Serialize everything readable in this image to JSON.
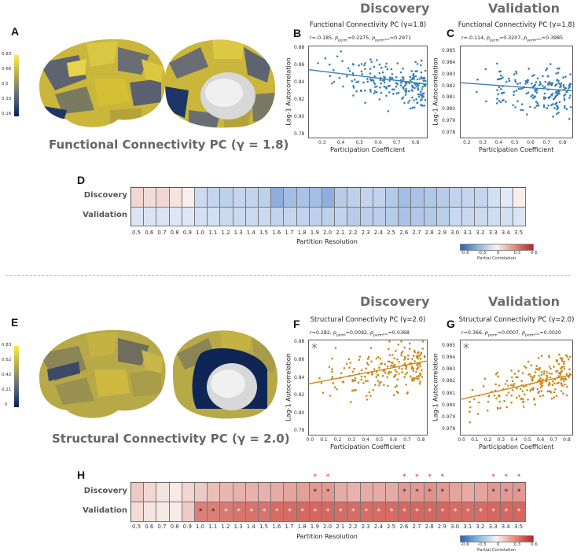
{
  "header": {
    "discovery": "Discovery",
    "validation": "Validation",
    "discovery2": "Discovery",
    "validation2": "Validation"
  },
  "panels": {
    "A": "A",
    "B": "B",
    "C": "C",
    "D": "D",
    "E": "E",
    "F": "F",
    "G": "G",
    "H": "H"
  },
  "brain": {
    "functional_caption": "Functional Connectivity PC (γ = 1.8)",
    "structural_caption": "Structural Connectivity PC (γ = 2.0)",
    "functional_cbar_ticks": [
      "0.83",
      "0.66",
      "0.5",
      "0.33",
      "0.16"
    ],
    "structural_cbar_ticks": [
      "0.83",
      "0.62",
      "0.42",
      "0.21",
      "0"
    ]
  },
  "chart_data": [
    {
      "type": "scatter",
      "panel": "B",
      "title": "Functional Connectivity PC (γ=1.8)",
      "stats": "r=-0.185, p_perm=0.2275, p_perm*** =0.2971",
      "stat_r": "r=-0.185, ",
      "stat_p1": "p",
      "stat_p1sub": "perm",
      "stat_p1val": "=0.2275, ",
      "stat_p2": "p",
      "stat_p2sub": "perm***",
      "stat_p2val": "=0.2971",
      "xlabel": "Participation Coefficient",
      "ylabel": "Lag-1 Autocorrelation",
      "xlim": [
        0.22,
        0.86
      ],
      "ylim": [
        0.775,
        0.883
      ],
      "xticks": [
        "0.3",
        "0.4",
        "0.5",
        "0.6",
        "0.7",
        "0.8"
      ],
      "yticks": [
        "0.88",
        "0.86",
        "0.84",
        "0.82",
        "0.80",
        "0.78"
      ],
      "fit": {
        "x0": 0.22,
        "y0": 0.855,
        "x1": 0.86,
        "y1": 0.838
      },
      "color": "#3a7fb4",
      "seed": 11,
      "slope": -0.03,
      "intercept": 0.861,
      "noise": 0.016,
      "significant": false
    },
    {
      "type": "scatter",
      "panel": "C",
      "title": "Functional Connectivity PC (γ=1.8)",
      "stats": "r=-0.114, p_perm=0.3207, p_perm*** =0.3985",
      "stat_r": "r=-0.114, ",
      "stat_p1": "p",
      "stat_p1sub": "perm",
      "stat_p1val": "=0.3207, ",
      "stat_p2": "p",
      "stat_p2sub": "perm***",
      "stat_p2val": "=0.3985",
      "xlabel": "Participation Coefficient",
      "ylabel": "Lag-1 Autocorrelation",
      "xlim": [
        0.15,
        0.86
      ],
      "ylim": [
        0.9775,
        0.9855
      ],
      "xticks": [
        "0.2",
        "0.3",
        "0.4",
        "0.5",
        "0.6",
        "0.7",
        "0.8"
      ],
      "yticks": [
        "0.985",
        "0.984",
        "0.983",
        "0.982",
        "0.981",
        "0.980",
        "0.979",
        "0.978"
      ],
      "fit": {
        "x0": 0.15,
        "y0": 0.9823,
        "x1": 0.86,
        "y1": 0.9816
      },
      "color": "#3a7fb4",
      "seed": 23,
      "slope": -0.0012,
      "intercept": 0.9825,
      "noise": 0.0012,
      "significant": false
    },
    {
      "type": "scatter",
      "panel": "F",
      "title": "Structural Connectivity PC (γ=2.0)",
      "stats": "r=0.282, p_perm=0.0092, p_perm*** =0.0368",
      "stat_r": "r=0.282, ",
      "stat_p1": "p",
      "stat_p1sub": "perm",
      "stat_p1val": "=0.0092, ",
      "stat_p2": "p",
      "stat_p2sub": "perm***",
      "stat_p2val": "=0.0368",
      "xlabel": "Participation Coefficient",
      "ylabel": "Lag-1 Autocorrelation",
      "xlim": [
        -0.02,
        0.84
      ],
      "ylim": [
        0.775,
        0.883
      ],
      "xticks": [
        "0.0",
        "0.1",
        "0.2",
        "0.3",
        "0.4",
        "0.5",
        "0.6",
        "0.7",
        "0.8"
      ],
      "yticks": [
        "0.88",
        "0.86",
        "0.84",
        "0.82",
        "0.80",
        "0.78"
      ],
      "fit": {
        "x0": -0.02,
        "y0": 0.833,
        "x1": 0.84,
        "y1": 0.859
      },
      "color": "#c98a1c",
      "seed": 37,
      "slope": 0.03,
      "intercept": 0.833,
      "noise": 0.016,
      "significant": true,
      "marker": "*"
    },
    {
      "type": "scatter",
      "panel": "G",
      "title": "Structural Connectivity PC (γ=2.0)",
      "stats": "r=0.366, p_perm=0.0007, p_perm*** =0.0020",
      "stat_r": "r=0.366, ",
      "stat_p1": "p",
      "stat_p1sub": "perm",
      "stat_p1val": "=0.0007, ",
      "stat_p2": "p",
      "stat_p2sub": "perm***",
      "stat_p2val": "=0.0020",
      "xlabel": "Participation Coefficient",
      "ylabel": "Lag-1 Autocorrelation",
      "xlim": [
        -0.02,
        0.84
      ],
      "ylim": [
        0.9775,
        0.9855
      ],
      "xticks": [
        "0.0",
        "0.1",
        "0.2",
        "0.3",
        "0.4",
        "0.5",
        "0.6",
        "0.7",
        "0.8"
      ],
      "yticks": [
        "0.985",
        "0.984",
        "0.983",
        "0.982",
        "0.981",
        "0.980",
        "0.979",
        "0.978"
      ],
      "fit": {
        "x0": -0.02,
        "y0": 0.9805,
        "x1": 0.84,
        "y1": 0.9826
      },
      "color": "#c98a1c",
      "seed": 53,
      "slope": 0.0025,
      "intercept": 0.9806,
      "noise": 0.0012,
      "significant": true,
      "marker": "*"
    },
    {
      "type": "heatmap",
      "panel": "D",
      "rows": [
        "Discovery",
        "Validation"
      ],
      "xlabel": "Partition Resolution",
      "columns": [
        "0.5",
        "0.6",
        "0.7",
        "0.8",
        "0.9",
        "1.0",
        "1.1",
        "1.2",
        "1.3",
        "1.4",
        "1.5",
        "1.6",
        "1.7",
        "1.8",
        "1.9",
        "2.0",
        "2.1",
        "2.2",
        "2.3",
        "2.4",
        "2.5",
        "2.6",
        "2.7",
        "2.8",
        "2.9",
        "3.0",
        "3.1",
        "3.2",
        "3.3",
        "3.4",
        "3.5"
      ],
      "values": [
        [
          0.1,
          0.08,
          0.1,
          0.06,
          0.02,
          -0.12,
          -0.14,
          -0.16,
          -0.14,
          -0.15,
          -0.16,
          -0.3,
          -0.24,
          -0.22,
          -0.24,
          -0.3,
          -0.18,
          -0.16,
          -0.15,
          -0.15,
          -0.19,
          -0.24,
          -0.22,
          -0.2,
          -0.18,
          -0.15,
          -0.14,
          -0.14,
          -0.1,
          -0.06,
          0.02
        ],
        [
          -0.08,
          -0.08,
          -0.08,
          -0.07,
          -0.07,
          -0.1,
          -0.1,
          -0.12,
          -0.12,
          -0.12,
          -0.12,
          -0.15,
          -0.14,
          -0.15,
          -0.16,
          -0.16,
          -0.15,
          -0.18,
          -0.17,
          -0.17,
          -0.18,
          -0.22,
          -0.2,
          -0.19,
          -0.17,
          -0.13,
          -0.13,
          -0.12,
          -0.11,
          -0.1,
          -0.08
        ]
      ],
      "colorbar": {
        "ticks": [
          "-0.6",
          "-0.3",
          "0",
          "0.3",
          "0.6"
        ],
        "label": "Partial Correlation"
      },
      "discovery_sig_black": [],
      "discovery_sig_red": [],
      "validation_sig": []
    },
    {
      "type": "heatmap",
      "panel": "H",
      "rows": [
        "Discovery",
        "Validation"
      ],
      "xlabel": "Partition Resolution",
      "columns": [
        "0.5",
        "0.6",
        "0.7",
        "0.8",
        "0.9",
        "1.0",
        "1.1",
        "1.2",
        "1.3",
        "1.4",
        "1.5",
        "1.6",
        "1.7",
        "1.8",
        "1.9",
        "2.0",
        "2.1",
        "2.2",
        "2.3",
        "2.4",
        "2.5",
        "2.6",
        "2.7",
        "2.8",
        "2.9",
        "3.0",
        "3.1",
        "3.2",
        "3.3",
        "3.4",
        "3.5"
      ],
      "values": [
        [
          0.14,
          0.1,
          0.06,
          0.04,
          0.1,
          0.14,
          0.18,
          0.2,
          0.22,
          0.22,
          0.22,
          0.24,
          0.26,
          0.28,
          0.3,
          0.3,
          0.24,
          0.22,
          0.24,
          0.24,
          0.24,
          0.3,
          0.3,
          0.32,
          0.3,
          0.26,
          0.24,
          0.26,
          0.3,
          0.3,
          0.3
        ],
        [
          0.08,
          0.06,
          0.04,
          0.03,
          0.14,
          0.38,
          0.38,
          0.4,
          0.42,
          0.42,
          0.42,
          0.44,
          0.44,
          0.45,
          0.46,
          0.46,
          0.44,
          0.44,
          0.44,
          0.44,
          0.44,
          0.46,
          0.46,
          0.46,
          0.46,
          0.44,
          0.44,
          0.44,
          0.46,
          0.46,
          0.46
        ]
      ],
      "colorbar": {
        "ticks": [
          "-0.6",
          "-0.3",
          "0",
          "0.3",
          "0.6"
        ],
        "label": "Partial Correlation"
      },
      "discovery_sig_black": [
        "1.9",
        "2.0",
        "2.6",
        "2.7",
        "2.8",
        "2.9",
        "3.3",
        "3.4",
        "3.5"
      ],
      "discovery_sig_red": [
        "1.9",
        "2.0",
        "2.6",
        "2.7",
        "2.8",
        "2.9",
        "3.3",
        "3.4",
        "3.5"
      ],
      "validation_sig_black": [
        "1.0",
        "1.1"
      ],
      "validation_sig_white": [
        "1.2",
        "1.3",
        "1.4",
        "1.5",
        "1.6",
        "1.7",
        "1.8",
        "1.9",
        "2.0",
        "2.1",
        "2.2",
        "2.3",
        "2.4",
        "2.5",
        "2.6",
        "2.7",
        "2.8",
        "2.9",
        "3.0",
        "3.1",
        "3.2",
        "3.3",
        "3.4",
        "3.5"
      ]
    }
  ]
}
